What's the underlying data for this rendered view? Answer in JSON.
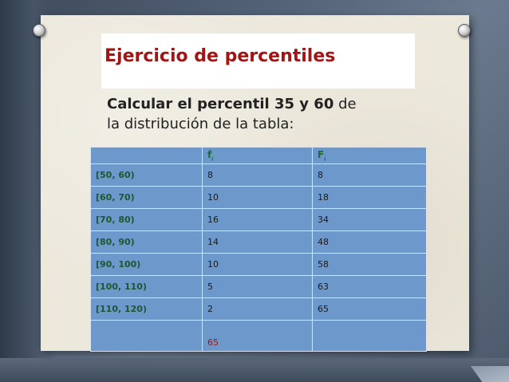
{
  "slide": {
    "title": "Ejercicio de percentiles",
    "subtitle_bold": "Calcular el percentil 35 y 60",
    "subtitle_rest_1": " de",
    "subtitle_rest_2": "la distribución de la tabla:"
  },
  "table": {
    "headers": [
      {
        "main": "",
        "sub": ""
      },
      {
        "main": "f",
        "sub": "i"
      },
      {
        "main": "F",
        "sub": "i"
      }
    ],
    "rows": [
      [
        "[50, 60)",
        "8",
        "8"
      ],
      [
        "[60, 70)",
        "10",
        "18"
      ],
      [
        "[70, 80)",
        "16",
        "34"
      ],
      [
        "[80, 90)",
        "14",
        "48"
      ],
      [
        "[90, 100)",
        "10",
        "58"
      ],
      [
        "[100, 110)",
        "5",
        "63"
      ],
      [
        "[110, 120)",
        "2",
        "65"
      ]
    ],
    "total": "65"
  }
}
